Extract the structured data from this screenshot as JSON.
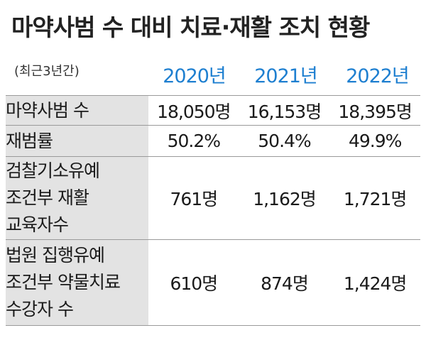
{
  "title": "마약사범 수 대비 치료·재활 조치 현황",
  "subtitle": "(최근3년간)",
  "years": [
    "2020년",
    "2021년",
    "2022년"
  ],
  "rows": [
    {
      "label": [
        "마약사범 수"
      ],
      "values": [
        "18,050명",
        "16,153명",
        "18,395명"
      ]
    },
    {
      "label": [
        "재범률"
      ],
      "values": [
        "50.2%",
        "50.4%",
        "49.9%"
      ]
    },
    {
      "label": [
        "검찰기소유예",
        "조건부 재활",
        "교육자수"
      ],
      "values": [
        "761명",
        "1,162명",
        "1,721명"
      ]
    },
    {
      "label": [
        "법원 집행유예",
        "조건부 약물치료",
        "수강자 수"
      ],
      "values": [
        "610명",
        "874명",
        "1,424명"
      ]
    }
  ]
}
